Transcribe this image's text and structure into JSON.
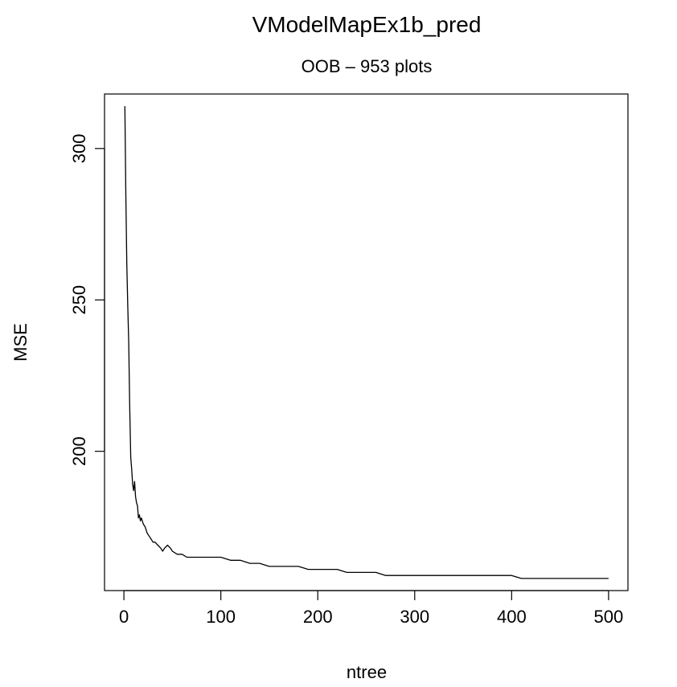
{
  "chart_data": {
    "type": "line",
    "title": "VModelMapEx1b_pred",
    "subtitle": "OOB – 953 plots",
    "xlabel": "ntree",
    "ylabel": "MSE",
    "xlim": [
      -20,
      520
    ],
    "ylim": [
      154,
      318
    ],
    "grid": false,
    "legend": "none",
    "x_ticks": [
      0,
      100,
      200,
      300,
      400,
      500
    ],
    "y_ticks": [
      200,
      250,
      300
    ],
    "line_color": "#000000",
    "series": [
      {
        "x": [
          1,
          2,
          3,
          4,
          5,
          6,
          7,
          8,
          9,
          10,
          11,
          12,
          13,
          14,
          15,
          16,
          17,
          18,
          20,
          22,
          24,
          26,
          28,
          30,
          32,
          35,
          38,
          40,
          42,
          45,
          48,
          50,
          55,
          60,
          65,
          70,
          75,
          80,
          90,
          100,
          110,
          120,
          130,
          140,
          150,
          160,
          170,
          180,
          190,
          200,
          210,
          220,
          230,
          240,
          250,
          260,
          270,
          280,
          290,
          300,
          310,
          320,
          330,
          340,
          350,
          360,
          370,
          380,
          390,
          400,
          410,
          420,
          430,
          440,
          450,
          460,
          470,
          480,
          490,
          500
        ],
        "y": [
          314,
          285,
          262,
          248,
          236,
          215,
          198,
          194,
          189,
          187,
          190,
          185,
          183,
          182,
          178,
          179,
          177,
          178,
          176,
          175,
          173,
          172,
          171,
          170,
          170,
          169,
          168,
          167,
          168,
          169,
          168,
          167,
          166,
          166,
          165,
          165,
          165,
          165,
          165,
          165,
          164,
          164,
          163,
          163,
          162,
          162,
          162,
          162,
          161,
          161,
          161,
          161,
          160,
          160,
          160,
          160,
          159,
          159,
          159,
          159,
          159,
          159,
          159,
          159,
          159,
          159,
          159,
          159,
          159,
          159,
          158,
          158,
          158,
          158,
          158,
          158,
          158,
          158,
          158,
          158
        ]
      }
    ]
  }
}
